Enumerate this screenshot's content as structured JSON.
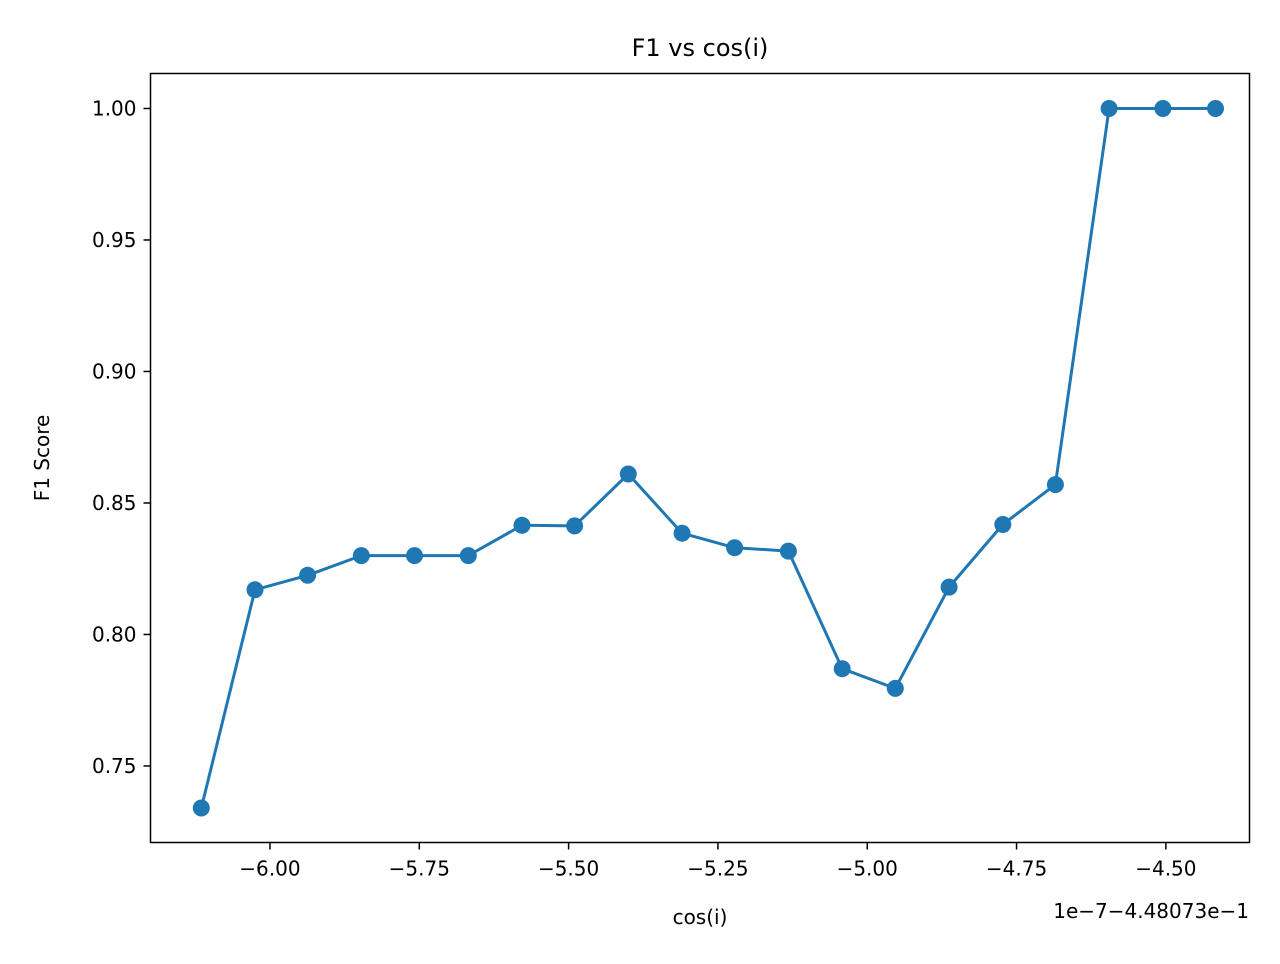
{
  "chart_data": {
    "type": "line",
    "title": "F1 vs cos(i)",
    "xlabel": "cos(i)",
    "ylabel": "F1 Score",
    "offset_label": "1e−7−4.48073e−1",
    "x_ticks": [
      -6.0,
      -5.75,
      -5.5,
      -5.25,
      -5.0,
      -4.75,
      -4.5
    ],
    "x_tick_labels": [
      "−6.00",
      "−5.75",
      "−5.50",
      "−5.25",
      "−5.00",
      "−4.75",
      "−4.50"
    ],
    "y_ticks": [
      0.75,
      0.8,
      0.85,
      0.9,
      0.95,
      1.0
    ],
    "y_tick_labels": [
      "0.75",
      "0.80",
      "0.85",
      "0.90",
      "0.95",
      "1.00"
    ],
    "xlim": [
      -6.2,
      -4.36
    ],
    "ylim": [
      0.7209,
      1.0133
    ],
    "grid": false,
    "color": "#1f77b4",
    "series": [
      {
        "x": [
          -6.115,
          -6.025,
          -5.937,
          -5.847,
          -5.758,
          -5.668,
          -5.578,
          -5.49,
          -5.4,
          -5.31,
          -5.222,
          -5.132,
          -5.042,
          -4.953,
          -4.863,
          -4.773,
          -4.685,
          -4.595,
          -4.505,
          -4.417
        ],
        "y": [
          0.734,
          0.817,
          0.8225,
          0.83,
          0.83,
          0.83,
          0.8415,
          0.8413,
          0.861,
          0.8385,
          0.833,
          0.8317,
          0.787,
          0.7795,
          0.818,
          0.8418,
          0.857,
          1.0,
          1.0,
          1.0
        ]
      }
    ]
  }
}
